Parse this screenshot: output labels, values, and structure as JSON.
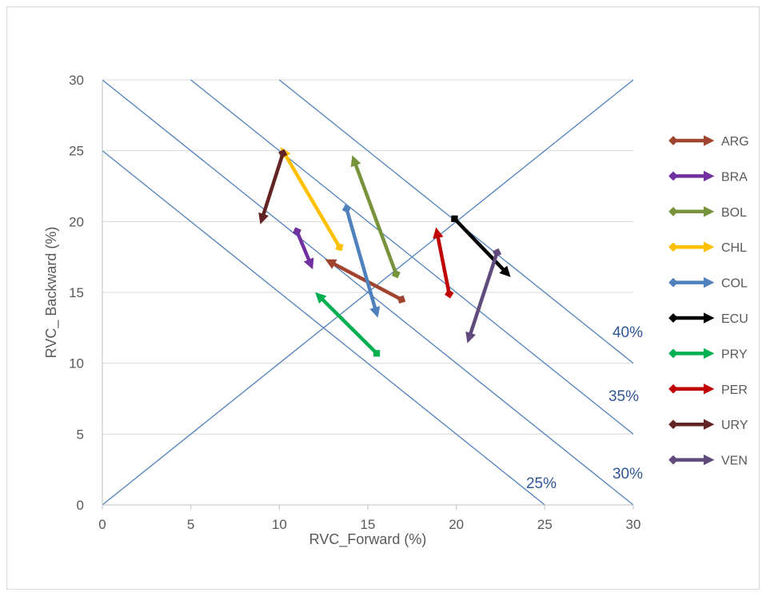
{
  "chart_data": {
    "type": "scatter",
    "xlabel": "RVC_Forward (%)",
    "ylabel": "RVC_ Backward (%)",
    "xlim": [
      0,
      30
    ],
    "ylim": [
      0,
      30
    ],
    "x_ticks": [
      "0",
      "5",
      "10",
      "15",
      "20",
      "25",
      "30"
    ],
    "y_ticks": [
      "0",
      "5",
      "10",
      "15",
      "20",
      "25",
      "30"
    ],
    "grid": "horizontal",
    "legend_position": "right",
    "reference_lines": [
      {
        "label": "",
        "from": [
          0,
          0
        ],
        "to": [
          30,
          30
        ]
      },
      {
        "label": "25%",
        "from": [
          0,
          25
        ],
        "to": [
          25,
          0
        ]
      },
      {
        "label": "30%",
        "from": [
          0,
          30
        ],
        "to": [
          30,
          0
        ]
      },
      {
        "label": "35%",
        "from": [
          5,
          30
        ],
        "to": [
          30,
          5
        ]
      },
      {
        "label": "40%",
        "from": [
          10,
          30
        ],
        "to": [
          30,
          10
        ]
      }
    ],
    "series": [
      {
        "name": "ARG",
        "color": "#a0432f",
        "from": [
          16.9,
          14.5
        ],
        "to": [
          12.8,
          17.2
        ]
      },
      {
        "name": "BRA",
        "color": "#7030a0",
        "from": [
          11.0,
          19.3
        ],
        "to": [
          11.8,
          16.9
        ]
      },
      {
        "name": "BOL",
        "color": "#77933c",
        "from": [
          16.6,
          16.3
        ],
        "to": [
          14.2,
          24.4
        ]
      },
      {
        "name": "CHL",
        "color": "#ffc000",
        "from": [
          13.4,
          18.2
        ],
        "to": [
          10.2,
          25.0
        ]
      },
      {
        "name": "COL",
        "color": "#4f81bd",
        "from": [
          13.8,
          20.9
        ],
        "to": [
          15.5,
          13.5
        ]
      },
      {
        "name": "ECU",
        "color": "#000000",
        "from": [
          19.9,
          20.2
        ],
        "to": [
          22.9,
          16.3
        ]
      },
      {
        "name": "PRY",
        "color": "#00b050",
        "from": [
          15.5,
          10.7
        ],
        "to": [
          12.2,
          14.8
        ]
      },
      {
        "name": "PER",
        "color": "#c00000",
        "from": [
          19.6,
          14.9
        ],
        "to": [
          18.9,
          19.3
        ]
      },
      {
        "name": "URY",
        "color": "#632523",
        "from": [
          10.2,
          24.8
        ],
        "to": [
          9.0,
          20.1
        ]
      },
      {
        "name": "VEN",
        "color": "#604a7b",
        "from": [
          22.3,
          17.8
        ],
        "to": [
          20.7,
          11.7
        ]
      }
    ]
  }
}
